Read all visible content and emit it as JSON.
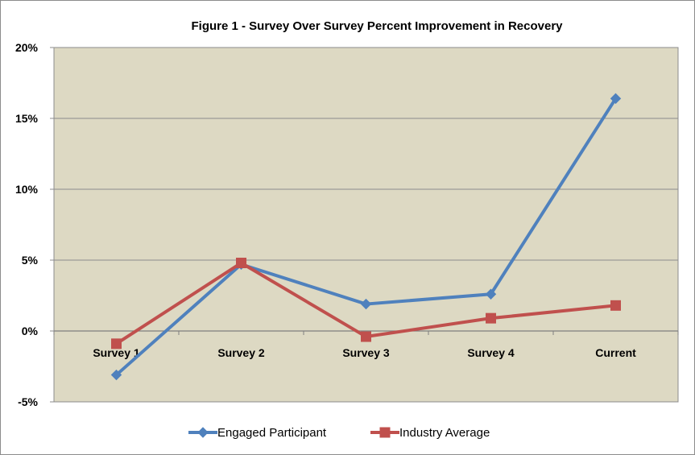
{
  "chart_data": {
    "type": "line",
    "title": "Figure 1 - Survey Over Survey Percent Improvement in Recovery",
    "xlabel": "",
    "ylabel": "",
    "categories": [
      "Survey 1",
      "Survey 2",
      "Survey 3",
      "Survey 4",
      "Current"
    ],
    "ylim": [
      -5,
      20
    ],
    "y_ticks": [
      20,
      15,
      10,
      5,
      0,
      -5
    ],
    "y_tick_labels": [
      "20%",
      "15%",
      "10%",
      "5%",
      "0%",
      "-5%"
    ],
    "grid": true,
    "legend_position": "bottom",
    "series": [
      {
        "name": "Engaged Participant",
        "values": [
          -3.1,
          4.7,
          1.9,
          2.6,
          16.4
        ],
        "color": "#4f81bd",
        "marker": "diamond"
      },
      {
        "name": "Industry Average",
        "values": [
          -0.9,
          4.8,
          -0.4,
          0.9,
          1.8
        ],
        "color": "#c0504d",
        "marker": "square"
      }
    ],
    "colors": {
      "plot_background": "#ddd9c3",
      "gridline": "#8c8c8c"
    }
  }
}
